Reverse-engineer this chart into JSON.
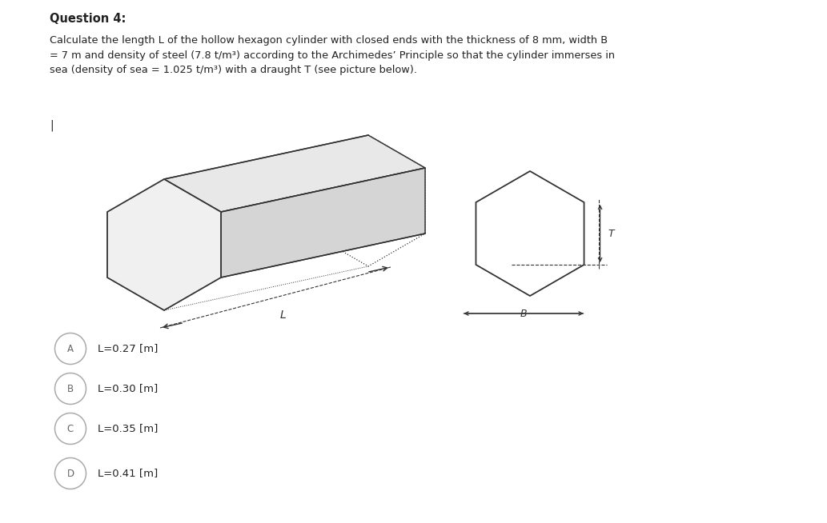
{
  "title": "Question 4:",
  "question_text": "Calculate the length L of the hollow hexagon cylinder with closed ends with the thickness of 8 mm, width B\n= 7 m and density of steel (7.8 t/m³) according to the Archimedes’ Principle so that the cylinder immerses in\nsea (density of sea = 1.025 t/m³) with a draught T (see picture below).",
  "options": [
    {
      "label": "A",
      "text": "L=0.27 [m]"
    },
    {
      "label": "B",
      "text": "L=0.30 [m]"
    },
    {
      "label": "C",
      "text": "L=0.35 [m]"
    },
    {
      "label": "D",
      "text": "L=0.41 [m]"
    }
  ],
  "bg_color": "#ffffff",
  "text_color": "#222222",
  "line_color": "#333333"
}
